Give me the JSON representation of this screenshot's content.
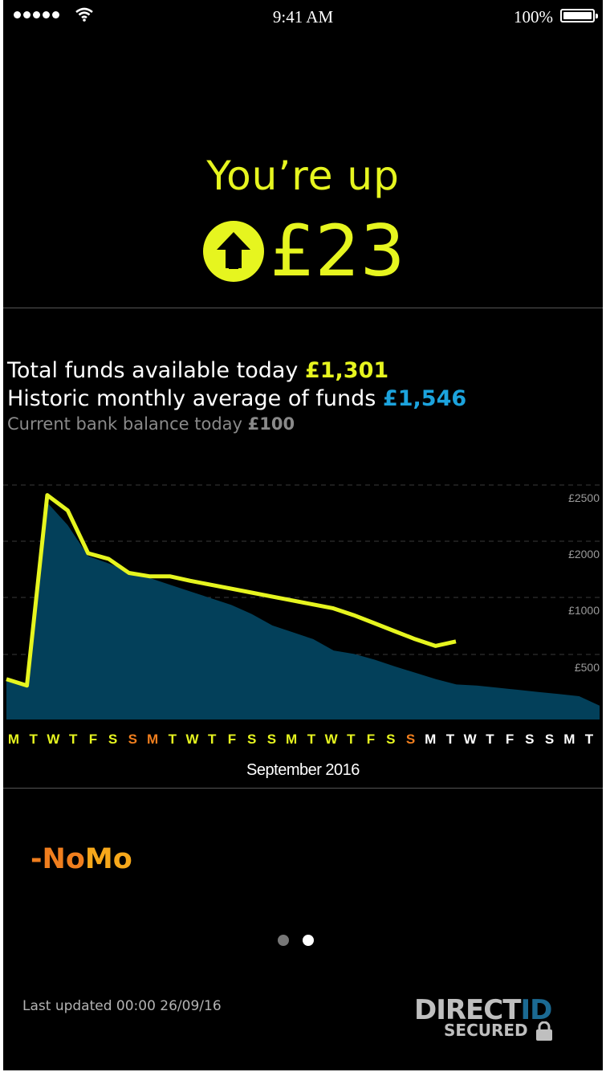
{
  "status_bar": {
    "time": "9:41 AM",
    "battery": "100%"
  },
  "headline": {
    "title": "You’re up",
    "amount": "£23"
  },
  "funds": {
    "total_label": "Total funds available today ",
    "total_value": "£1,301",
    "average_label": "Historic monthly average of funds ",
    "average_value": "£1,546",
    "balance_label": "Current bank balance today ",
    "balance_value": "£100"
  },
  "colors": {
    "accent": "#e6f51f",
    "average": "#1ca3dd",
    "area": "#03405a",
    "weekend": "#e6f51f",
    "highlight": "#f07e1e"
  },
  "chart_data": {
    "type": "area",
    "xlabel": "September 2016",
    "y_ticks": [
      "£500",
      "£1000",
      "£2000",
      "£2500"
    ],
    "day_labels": [
      "M",
      "T",
      "W",
      "T",
      "F",
      "S",
      "S",
      "M",
      "T",
      "W",
      "T",
      "F",
      "S",
      "S",
      "M",
      "T",
      "W",
      "T",
      "F",
      "S",
      "S",
      "M",
      "T",
      "W",
      "T",
      "F",
      "S",
      "S",
      "M",
      "T"
    ],
    "series": [
      {
        "kind": "area",
        "values": [
          380,
          330,
          2450,
          2250,
          1950,
          1820,
          1680,
          1560,
          1440,
          1320,
          1200,
          1080,
          960,
          860,
          800,
          740,
          640,
          610,
          560,
          500,
          440,
          380,
          330,
          320,
          300,
          280,
          260,
          240,
          220,
          130
        ]
      },
      {
        "kind": "line",
        "values": [
          380,
          320,
          2550,
          2380,
          2000,
          1900,
          1650,
          1590,
          1590,
          1510,
          1440,
          1370,
          1300,
          1230,
          1160,
          1090,
          1020,
          950,
          880,
          810,
          740,
          680,
          720
        ]
      }
    ]
  },
  "month_label": "September 2016",
  "brand": {
    "part1": "-No",
    "part2": "Mo"
  },
  "pagination": {
    "count": 2,
    "active": 2
  },
  "footer": {
    "updated": "Last updated 00:00 26/09/16",
    "logo_top_a": "DIRECT",
    "logo_top_b": "ID",
    "logo_bottom": "SECURED"
  }
}
